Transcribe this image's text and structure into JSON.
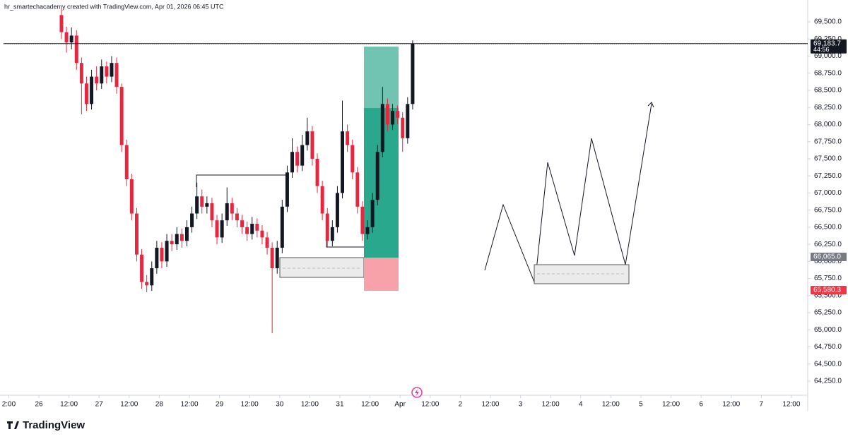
{
  "header": {
    "text": "hr_smartechacademy created with TradingView.com, Apr 01, 2026 06:45 UTC"
  },
  "chart_data": {
    "type": "candlestick",
    "x": [
      9,
      11,
      13,
      15,
      17,
      19,
      21,
      23,
      25,
      27,
      29,
      31,
      33,
      35,
      37,
      39,
      41,
      43,
      45,
      47,
      49,
      51,
      53,
      55,
      57,
      59,
      61,
      63,
      65,
      67,
      69,
      71,
      73,
      75,
      77,
      79,
      81,
      83,
      85,
      87,
      89,
      91,
      93,
      95,
      97,
      99,
      101,
      103,
      105,
      107,
      109,
      111,
      113,
      115,
      117,
      119,
      121,
      123,
      125,
      127,
      129,
      131,
      133,
      135,
      137,
      139,
      141,
      143,
      145,
      147,
      149
    ],
    "open": [
      69600,
      69350,
      69200,
      69300,
      68900,
      68600,
      68300,
      68700,
      68600,
      68850,
      68700,
      68900,
      68550,
      67700,
      67200,
      66700,
      66100,
      65700,
      65650,
      65900,
      66200,
      66000,
      66300,
      66250,
      66400,
      66300,
      66500,
      66700,
      66950,
      66800,
      66850,
      66600,
      66350,
      66600,
      66850,
      66700,
      66600,
      66500,
      66400,
      66550,
      66450,
      66350,
      66200,
      65900,
      66200,
      66800,
      67300,
      67600,
      67400,
      67700,
      67900,
      67500,
      67100,
      66700,
      66300,
      66500,
      67000,
      67900,
      67700,
      67300,
      66800,
      66400,
      66500,
      66900,
      67600,
      68300,
      68000,
      68200,
      68100,
      67800,
      68300
    ],
    "high": [
      69700,
      69430,
      69420,
      69380,
      68980,
      68700,
      68800,
      68850,
      68950,
      68920,
      69000,
      68980,
      68600,
      67780,
      67280,
      66780,
      66180,
      65800,
      66000,
      66300,
      66280,
      66400,
      66400,
      66500,
      66480,
      66600,
      66800,
      67150,
      67050,
      66950,
      66930,
      66680,
      66700,
      67080,
      66930,
      66780,
      66680,
      66580,
      66650,
      66630,
      66530,
      66430,
      66280,
      66300,
      66900,
      67400,
      67800,
      67680,
      67850,
      68100,
      67980,
      67580,
      67180,
      66780,
      66600,
      67100,
      68350,
      68000,
      67780,
      67380,
      66880,
      66600,
      67000,
      67700,
      68550,
      68380,
      68300,
      68280,
      68180,
      68400,
      69230
    ],
    "low": [
      69250,
      69050,
      69100,
      68800,
      68150,
      68200,
      68220,
      68500,
      68520,
      68600,
      68620,
      68450,
      67600,
      67100,
      66600,
      66000,
      65600,
      65550,
      65570,
      65820,
      65900,
      65920,
      66150,
      66170,
      66200,
      66220,
      66420,
      66620,
      66700,
      66700,
      66500,
      66250,
      66270,
      66520,
      66600,
      66500,
      66400,
      66300,
      66320,
      66350,
      66250,
      66100,
      64950,
      65820,
      66120,
      66720,
      67220,
      67300,
      67320,
      67620,
      67400,
      67000,
      66600,
      66200,
      66220,
      66420,
      66920,
      67600,
      67200,
      66700,
      66300,
      66320,
      66420,
      66820,
      67520,
      67900,
      67920,
      68000,
      67600,
      67720,
      68220
    ],
    "close": [
      69350,
      69200,
      69300,
      68900,
      68600,
      68300,
      68700,
      68600,
      68850,
      68700,
      68900,
      68550,
      67700,
      67200,
      66700,
      66100,
      65700,
      65650,
      65900,
      66200,
      66000,
      66300,
      66250,
      66400,
      66300,
      66500,
      66700,
      66950,
      66800,
      66850,
      66600,
      66350,
      66600,
      66850,
      66700,
      66600,
      66500,
      66400,
      66550,
      66450,
      66350,
      66200,
      65900,
      66200,
      66800,
      67300,
      67600,
      67400,
      67700,
      67900,
      67500,
      67100,
      66700,
      66300,
      66500,
      67000,
      67900,
      67700,
      67300,
      66800,
      66400,
      66500,
      66900,
      67600,
      68300,
      68000,
      68200,
      68100,
      67800,
      68300,
      69180
    ],
    "up_color": "#131722",
    "down_color": "#e5283f",
    "xlim": [
      -15.5,
      306.5
    ],
    "ylim": [
      64044,
      69820
    ],
    "xticks": [
      {
        "value": -12,
        "label": "2:00"
      },
      {
        "value": 0,
        "label": "26"
      },
      {
        "value": 12,
        "label": "12:00"
      },
      {
        "value": 24,
        "label": "27"
      },
      {
        "value": 36,
        "label": "12:00"
      },
      {
        "value": 48,
        "label": "28"
      },
      {
        "value": 60,
        "label": "12:00"
      },
      {
        "value": 72,
        "label": "29"
      },
      {
        "value": 84,
        "label": "12:00"
      },
      {
        "value": 96,
        "label": "30"
      },
      {
        "value": 108,
        "label": "12:00"
      },
      {
        "value": 120,
        "label": "31"
      },
      {
        "value": 132,
        "label": "12:00"
      },
      {
        "value": 144,
        "label": "Apr"
      },
      {
        "value": 156,
        "label": "12:00"
      },
      {
        "value": 168,
        "label": "2"
      },
      {
        "value": 180,
        "label": "12:00"
      },
      {
        "value": 192,
        "label": "3"
      },
      {
        "value": 204,
        "label": "12:00"
      },
      {
        "value": 216,
        "label": "4"
      },
      {
        "value": 228,
        "label": "12:00"
      },
      {
        "value": 240,
        "label": "5"
      },
      {
        "value": 252,
        "label": "12:00"
      },
      {
        "value": 264,
        "label": "6"
      },
      {
        "value": 276,
        "label": "12:00"
      },
      {
        "value": 288,
        "label": "7"
      },
      {
        "value": 300,
        "label": "12:00"
      }
    ],
    "yticks": [
      {
        "value": 64250,
        "label": "64,250.0"
      },
      {
        "value": 64500,
        "label": "64,500.0"
      },
      {
        "value": 64750,
        "label": "64,750.0"
      },
      {
        "value": 65000,
        "label": "65,000.0"
      },
      {
        "value": 65250,
        "label": "65,250.0"
      },
      {
        "value": 65500,
        "label": "65,500.0"
      },
      {
        "value": 65750,
        "label": "65,750.0"
      },
      {
        "value": 66000,
        "label": "66,000.0"
      },
      {
        "value": 66250,
        "label": "66,250.0"
      },
      {
        "value": 66500,
        "label": "66,500.0"
      },
      {
        "value": 66750,
        "label": "66,750.0"
      },
      {
        "value": 67000,
        "label": "67,000.0"
      },
      {
        "value": 67250,
        "label": "67,250.0"
      },
      {
        "value": 67500,
        "label": "67,500.0"
      },
      {
        "value": 67750,
        "label": "67,750.0"
      },
      {
        "value": 68000,
        "label": "68,000.0"
      },
      {
        "value": 68250,
        "label": "68,250.0"
      },
      {
        "value": 68500,
        "label": "68,500.0"
      },
      {
        "value": 68750,
        "label": "68,750.0"
      },
      {
        "value": 69000,
        "label": "69,000.0"
      },
      {
        "value": 69250,
        "label": "69,250.0"
      },
      {
        "value": 69500,
        "label": "69,500.0"
      }
    ],
    "price_labels": [
      {
        "value": 69183.7,
        "label": "69,183.7",
        "countdown": "44:56",
        "color": "#131722"
      },
      {
        "value": 66065.0,
        "label": "66,065.0",
        "color": "#787b86"
      },
      {
        "value": 65580.3,
        "label": "65,580.3",
        "color": "#f23645"
      }
    ]
  },
  "footer": {
    "logo": "TradingView"
  }
}
